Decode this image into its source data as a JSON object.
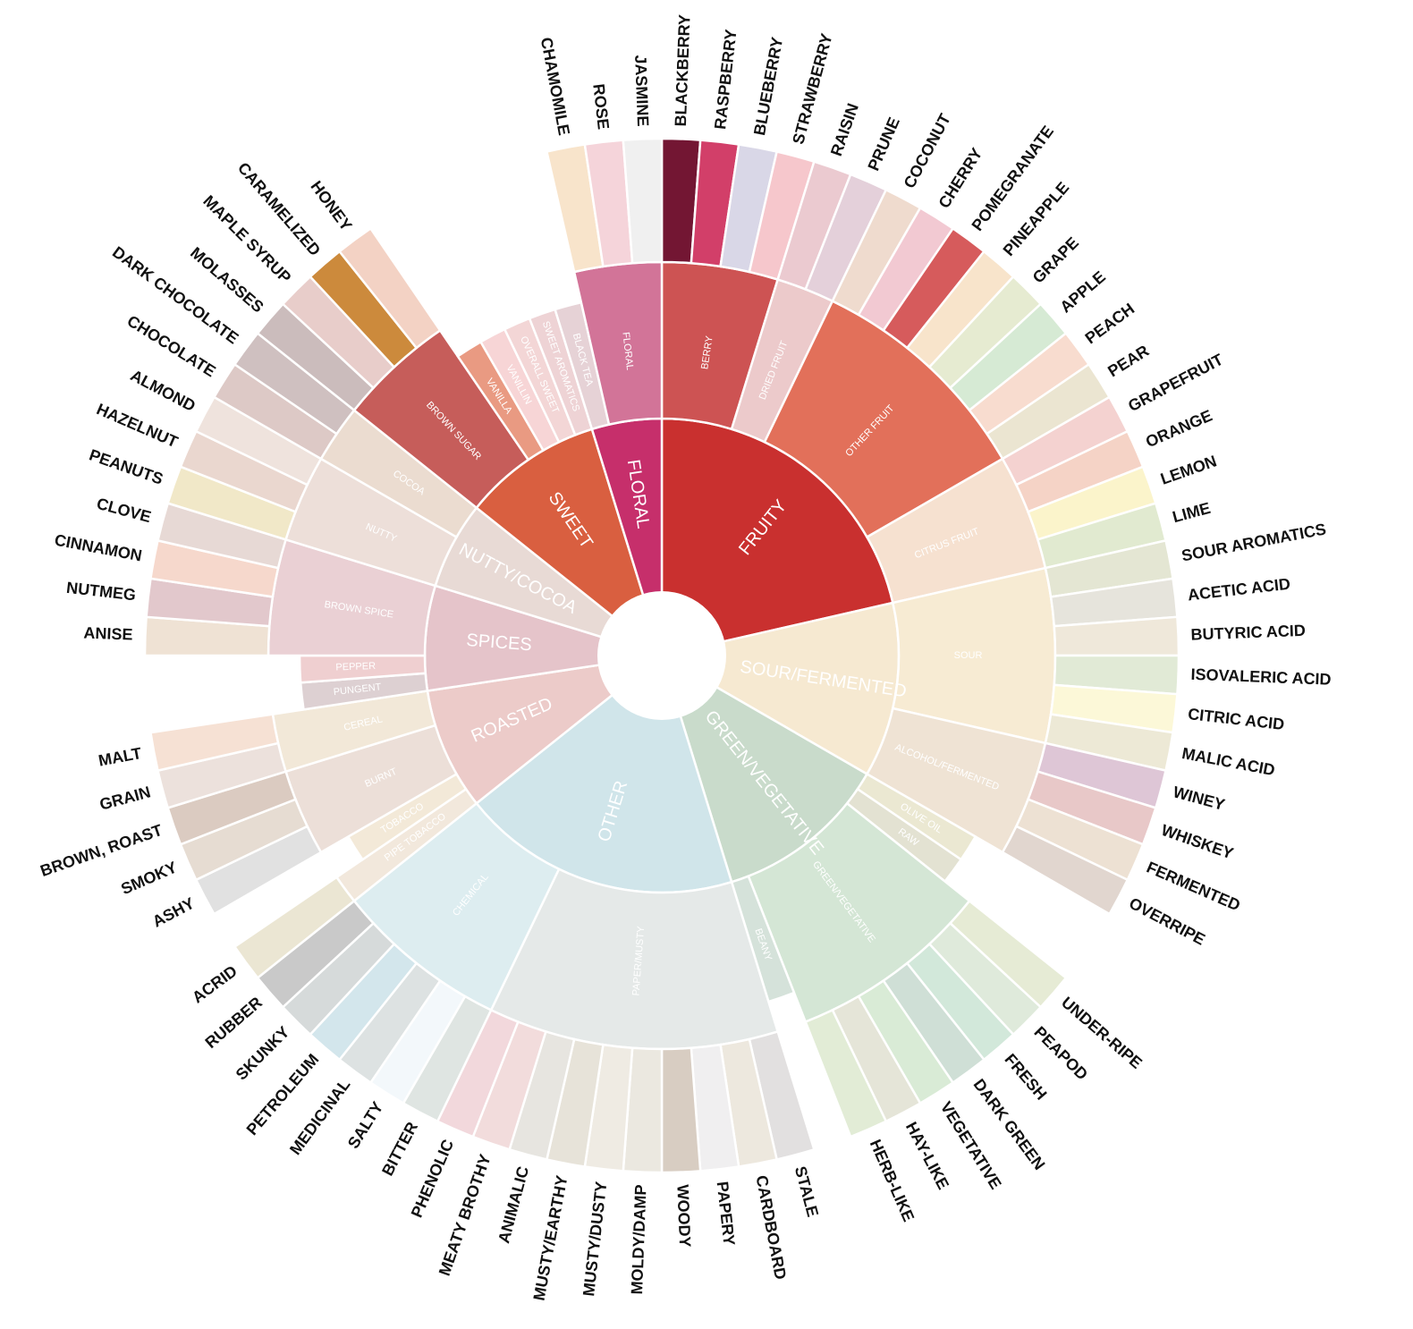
{
  "wheel": {
    "categories": [
      {
        "label": "FRUITY",
        "color": "#c9302f",
        "subs": [
          {
            "label": "BERRY",
            "color": "#cd5353",
            "flavors": [
              {
                "label": "BLACKBERRY",
                "color": "#731633"
              },
              {
                "label": "RASPBERRY",
                "color": "#d23f69"
              },
              {
                "label": "BLUEBERRY",
                "color": "#d9d7e7"
              },
              {
                "label": "STRAWBERRY",
                "color": "#f6c7cc"
              }
            ]
          },
          {
            "label": "DRIED FRUIT",
            "color": "#eccacb",
            "flavors": [
              {
                "label": "RAISIN",
                "color": "#ebcad0"
              },
              {
                "label": "PRUNE",
                "color": "#e4d0da"
              }
            ]
          },
          {
            "label": "OTHER FRUIT",
            "color": "#e2705a",
            "flavors": [
              {
                "label": "COCONUT",
                "color": "#efdbce"
              },
              {
                "label": "CHERRY",
                "color": "#f2c9d2"
              },
              {
                "label": "POMEGRANATE",
                "color": "#d65b5c"
              },
              {
                "label": "PINEAPPLE",
                "color": "#f8e4cb"
              },
              {
                "label": "GRAPE",
                "color": "#e6ebd1"
              },
              {
                "label": "APPLE",
                "color": "#d6ead4"
              },
              {
                "label": "PEACH",
                "color": "#f8dccf"
              },
              {
                "label": "PEAR",
                "color": "#ebe5d1"
              }
            ]
          },
          {
            "label": "CITRUS FRUIT",
            "color": "#f6e1d0",
            "flavors": [
              {
                "label": "GRAPEFRUIT",
                "color": "#f4d2d0"
              },
              {
                "label": "ORANGE",
                "color": "#f5d3c6"
              },
              {
                "label": "LEMON",
                "color": "#fbf4cb"
              },
              {
                "label": "LIME",
                "color": "#e1ead0"
              }
            ]
          }
        ]
      },
      {
        "label": "SOUR/FERMENTED",
        "color": "#f6e9d1",
        "subs": [
          {
            "label": "SOUR",
            "color": "#f7ebd3",
            "flavors": [
              {
                "label": "SOUR AROMATICS",
                "color": "#e4e6d3"
              },
              {
                "label": "ACETIC ACID",
                "color": "#e6e4dc"
              },
              {
                "label": "BUTYRIC ACID",
                "color": "#efe8da"
              },
              {
                "label": "ISOVALERIC ACID",
                "color": "#e1ead6"
              },
              {
                "label": "CITRIC ACID",
                "color": "#fcf8d8"
              },
              {
                "label": "MALIC ACID",
                "color": "#ede9d6"
              }
            ]
          },
          {
            "label": "ALCOHOL/FERMENTED",
            "color": "#efe3d4",
            "flavors": [
              {
                "label": "WINEY",
                "color": "#dec6d6"
              },
              {
                "label": "WHISKEY",
                "color": "#e8c8c8"
              },
              {
                "label": "FERMENTED",
                "color": "#ede1d3"
              },
              {
                "label": "OVERRIPE",
                "color": "#e1d6cf"
              }
            ]
          }
        ]
      },
      {
        "label": "GREEN/VEGETATIVE",
        "color": "#c9dbcb",
        "subs": [
          {
            "label": "OLIVE OIL",
            "color": "#ebe8d2",
            "flavors": []
          },
          {
            "label": "RAW",
            "color": "#e3e2d2",
            "flavors": []
          },
          {
            "label": "GREEN/VEGETATIVE",
            "color": "#d4e6d5",
            "flavors": [
              {
                "label": "UNDER-RIPE",
                "color": "#e6ebd5"
              },
              {
                "label": "PEAPOD",
                "color": "#dfeadb"
              },
              {
                "label": "FRESH",
                "color": "#d2e8da"
              },
              {
                "label": "DARK GREEN",
                "color": "#cfdfd6"
              },
              {
                "label": "VEGETATIVE",
                "color": "#d9ebd6"
              },
              {
                "label": "HAY-LIKE",
                "color": "#e5e5d8"
              },
              {
                "label": "HERB-LIKE",
                "color": "#e2ecd6"
              }
            ]
          },
          {
            "label": "BEANY",
            "color": "#d5e2da",
            "flavors": []
          }
        ]
      },
      {
        "label": "OTHER",
        "color": "#d0e5ea",
        "subs": [
          {
            "label": "PAPER/MUSTY",
            "color": "#e5e9e8",
            "flavors": [
              {
                "label": "STALE",
                "color": "#e2e0e0"
              },
              {
                "label": "CARDBOARD",
                "color": "#ede8de"
              },
              {
                "label": "PAPERY",
                "color": "#f0eff0"
              },
              {
                "label": "WOODY",
                "color": "#d8cdc2"
              },
              {
                "label": "MOLDY/DAMP",
                "color": "#ebe8e0"
              },
              {
                "label": "MUSTY/DUSTY",
                "color": "#efebe3"
              },
              {
                "label": "MUSTY/EARTHY",
                "color": "#e7e3d9"
              },
              {
                "label": "ANIMALIC",
                "color": "#e7e5e0"
              },
              {
                "label": "MEATY BROTHY",
                "color": "#f2dcdc"
              },
              {
                "label": "PHENOLIC",
                "color": "#f2d8dc"
              }
            ]
          },
          {
            "label": "CHEMICAL",
            "color": "#ddedf0",
            "flavors": [
              {
                "label": "BITTER",
                "color": "#dfe5e2"
              },
              {
                "label": "SALTY",
                "color": "#f3f8fb"
              },
              {
                "label": "MEDICINAL",
                "color": "#dde2e2"
              },
              {
                "label": "PETROLEUM",
                "color": "#d3e6ec"
              },
              {
                "label": "SKUNKY",
                "color": "#d6dada"
              },
              {
                "label": "RUBBER",
                "color": "#c9c9c9"
              }
            ]
          }
        ]
      },
      {
        "label": "ROASTED",
        "color": "#eccbc9",
        "subs": [
          {
            "label": "PIPE TOBACCO",
            "color": "#f2e8dc",
            "flavors": [
              {
                "label": "ACRID",
                "color": "#ebe6d3"
              }
            ]
          },
          {
            "label": "TOBACCO",
            "color": "#f3e9d8",
            "flavors": []
          },
          {
            "label": "BURNT",
            "color": "#ecdfd8",
            "flavors": [
              {
                "label": "ASHY",
                "color": "#e1e1e1"
              },
              {
                "label": "SMOKY",
                "color": "#e6dcd2"
              },
              {
                "label": "BROWN, ROAST",
                "color": "#dbcbc1"
              }
            ]
          },
          {
            "label": "CEREAL",
            "color": "#f2e8d8",
            "flavors": [
              {
                "label": "GRAIN",
                "color": "#ece1dc"
              },
              {
                "label": "MALT",
                "color": "#f6e1d4"
              }
            ]
          }
        ]
      },
      {
        "label": "SPICES",
        "color": "#e5c4ca",
        "subs": [
          {
            "label": "PUNGENT",
            "color": "#ddd0d2",
            "flavors": []
          },
          {
            "label": "PEPPER",
            "color": "#efcfd0",
            "flavors": []
          },
          {
            "label": "BROWN SPICE",
            "color": "#ead0d4",
            "flavors": [
              {
                "label": "ANISE",
                "color": "#efe2d4"
              },
              {
                "label": "NUTMEG",
                "color": "#e2c8cc"
              },
              {
                "label": "CINNAMON",
                "color": "#f6d8cc"
              },
              {
                "label": "CLOVE",
                "color": "#e7d9d5"
              }
            ]
          }
        ]
      },
      {
        "label": "NUTTY/COCOA",
        "color": "#e8dad5",
        "subs": [
          {
            "label": "NUTTY",
            "color": "#eddfd9",
            "flavors": [
              {
                "label": "PEANUTS",
                "color": "#f1e8c8"
              },
              {
                "label": "HAZELNUT",
                "color": "#ead7cf"
              },
              {
                "label": "ALMOND",
                "color": "#efe3dd"
              }
            ]
          },
          {
            "label": "COCOA",
            "color": "#ebdcd0",
            "flavors": [
              {
                "label": "CHOCOLATE",
                "color": "#ddc9c6"
              },
              {
                "label": "DARK CHOCOLATE",
                "color": "#cfc0c0"
              }
            ]
          }
        ]
      },
      {
        "label": "SWEET",
        "color": "#d95f40",
        "subs": [
          {
            "label": "BROWN SUGAR",
            "color": "#c65d5a",
            "flavors": [
              {
                "label": "MOLASSES",
                "color": "#cbbcbc"
              },
              {
                "label": "MAPLE SYRUP",
                "color": "#e8cdca"
              },
              {
                "label": "CARAMELIZED",
                "color": "#cc8a3c"
              },
              {
                "label": "HONEY",
                "color": "#f3d2c4"
              }
            ]
          },
          {
            "label": "VANILLA",
            "color": "#e99a82",
            "flavors": []
          },
          {
            "label": "VANILLIN",
            "color": "#f7d5d6",
            "flavors": []
          },
          {
            "label": "OVERALL SWEET",
            "color": "#f3d6d6",
            "flavors": []
          },
          {
            "label": "SWEET AROMATICS",
            "color": "#eed3d5",
            "flavors": []
          }
        ]
      },
      {
        "label": "FLORAL",
        "color": "#c62f6b",
        "subs": [
          {
            "label": "BLACK TEA",
            "color": "#e6d2d6",
            "flavors": []
          },
          {
            "label": "FLORAL",
            "color": "#d27498",
            "flavors": [
              {
                "label": "CHAMOMILE",
                "color": "#f8e4cb"
              },
              {
                "label": "ROSE",
                "color": "#f5d4da"
              },
              {
                "label": "JASMINE",
                "color": "#f0f0f0"
              }
            ]
          }
        ]
      }
    ]
  }
}
